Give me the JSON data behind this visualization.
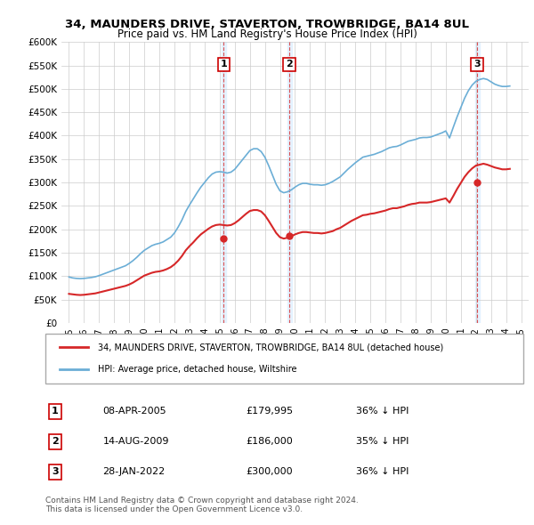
{
  "title_line1": "34, MAUNDERS DRIVE, STAVERTON, TROWBRIDGE, BA14 8UL",
  "title_line2": "Price paid vs. HM Land Registry's House Price Index (HPI)",
  "hpi_color": "#6baed6",
  "price_color": "#d62728",
  "transaction_color": "#d62728",
  "background_color": "#ffffff",
  "plot_bg_color": "#ffffff",
  "grid_color": "#cccccc",
  "shade_color": "#ddeeff",
  "transactions": [
    {
      "label": "1",
      "date": "08-APR-2005",
      "price": 179995,
      "hpi_pct": "36% ↓ HPI",
      "x_year": 2005.27
    },
    {
      "label": "2",
      "date": "14-AUG-2009",
      "price": 186000,
      "hpi_pct": "35% ↓ HPI",
      "x_year": 2009.62
    },
    {
      "label": "3",
      "date": "28-JAN-2022",
      "price": 300000,
      "hpi_pct": "36% ↓ HPI",
      "x_year": 2022.08
    }
  ],
  "hpi_data": {
    "years": [
      1995.0,
      1995.25,
      1995.5,
      1995.75,
      1996.0,
      1996.25,
      1996.5,
      1996.75,
      1997.0,
      1997.25,
      1997.5,
      1997.75,
      1998.0,
      1998.25,
      1998.5,
      1998.75,
      1999.0,
      1999.25,
      1999.5,
      1999.75,
      2000.0,
      2000.25,
      2000.5,
      2000.75,
      2001.0,
      2001.25,
      2001.5,
      2001.75,
      2002.0,
      2002.25,
      2002.5,
      2002.75,
      2003.0,
      2003.25,
      2003.5,
      2003.75,
      2004.0,
      2004.25,
      2004.5,
      2004.75,
      2005.0,
      2005.25,
      2005.5,
      2005.75,
      2006.0,
      2006.25,
      2006.5,
      2006.75,
      2007.0,
      2007.25,
      2007.5,
      2007.75,
      2008.0,
      2008.25,
      2008.5,
      2008.75,
      2009.0,
      2009.25,
      2009.5,
      2009.75,
      2010.0,
      2010.25,
      2010.5,
      2010.75,
      2011.0,
      2011.25,
      2011.5,
      2011.75,
      2012.0,
      2012.25,
      2012.5,
      2012.75,
      2013.0,
      2013.25,
      2013.5,
      2013.75,
      2014.0,
      2014.25,
      2014.5,
      2014.75,
      2015.0,
      2015.25,
      2015.5,
      2015.75,
      2016.0,
      2016.25,
      2016.5,
      2016.75,
      2017.0,
      2017.25,
      2017.5,
      2017.75,
      2018.0,
      2018.25,
      2018.5,
      2018.75,
      2019.0,
      2019.25,
      2019.5,
      2019.75,
      2020.0,
      2020.25,
      2020.5,
      2020.75,
      2021.0,
      2021.25,
      2021.5,
      2021.75,
      2022.0,
      2022.25,
      2022.5,
      2022.75,
      2023.0,
      2023.25,
      2023.5,
      2023.75,
      2024.0,
      2024.25
    ],
    "values": [
      98000,
      96000,
      95000,
      94500,
      95000,
      96000,
      97000,
      98500,
      101000,
      104000,
      107000,
      110000,
      113000,
      116000,
      119000,
      122000,
      127000,
      133000,
      140000,
      148000,
      155000,
      160000,
      165000,
      168000,
      170000,
      173000,
      178000,
      183000,
      192000,
      205000,
      220000,
      238000,
      252000,
      265000,
      278000,
      290000,
      300000,
      310000,
      318000,
      322000,
      323000,
      322000,
      320000,
      322000,
      328000,
      338000,
      348000,
      358000,
      368000,
      372000,
      372000,
      366000,
      354000,
      336000,
      316000,
      296000,
      282000,
      278000,
      280000,
      284000,
      290000,
      295000,
      298000,
      298000,
      296000,
      295000,
      295000,
      294000,
      295000,
      298000,
      302000,
      307000,
      312000,
      320000,
      328000,
      335000,
      342000,
      348000,
      354000,
      356000,
      358000,
      360000,
      363000,
      366000,
      370000,
      374000,
      376000,
      377000,
      380000,
      384000,
      388000,
      390000,
      392000,
      395000,
      396000,
      396000,
      397000,
      400000,
      403000,
      406000,
      410000,
      395000,
      418000,
      440000,
      460000,
      480000,
      496000,
      508000,
      516000,
      520000,
      522000,
      520000,
      515000,
      510000,
      507000,
      505000,
      505000,
      506000
    ]
  },
  "price_data": {
    "years": [
      1995.0,
      1995.25,
      1995.5,
      1995.75,
      1996.0,
      1996.25,
      1996.5,
      1996.75,
      1997.0,
      1997.25,
      1997.5,
      1997.75,
      1998.0,
      1998.25,
      1998.5,
      1998.75,
      1999.0,
      1999.25,
      1999.5,
      1999.75,
      2000.0,
      2000.25,
      2000.5,
      2000.75,
      2001.0,
      2001.25,
      2001.5,
      2001.75,
      2002.0,
      2002.25,
      2002.5,
      2002.75,
      2003.0,
      2003.25,
      2003.5,
      2003.75,
      2004.0,
      2004.25,
      2004.5,
      2004.75,
      2005.0,
      2005.25,
      2005.5,
      2005.75,
      2006.0,
      2006.25,
      2006.5,
      2006.75,
      2007.0,
      2007.25,
      2007.5,
      2007.75,
      2008.0,
      2008.25,
      2008.5,
      2008.75,
      2009.0,
      2009.25,
      2009.5,
      2009.75,
      2010.0,
      2010.25,
      2010.5,
      2010.75,
      2011.0,
      2011.25,
      2011.5,
      2011.75,
      2012.0,
      2012.25,
      2012.5,
      2012.75,
      2013.0,
      2013.25,
      2013.5,
      2013.75,
      2014.0,
      2014.25,
      2014.5,
      2014.75,
      2015.0,
      2015.25,
      2015.5,
      2015.75,
      2016.0,
      2016.25,
      2016.5,
      2016.75,
      2017.0,
      2017.25,
      2017.5,
      2017.75,
      2018.0,
      2018.25,
      2018.5,
      2018.75,
      2019.0,
      2019.25,
      2019.5,
      2019.75,
      2020.0,
      2020.25,
      2020.5,
      2020.75,
      2021.0,
      2021.25,
      2021.5,
      2021.75,
      2022.0,
      2022.25,
      2022.5,
      2022.75,
      2023.0,
      2023.25,
      2023.5,
      2023.75,
      2024.0,
      2024.25
    ],
    "values": [
      62000,
      61000,
      60000,
      59500,
      60000,
      61000,
      62000,
      63000,
      65000,
      67000,
      69000,
      71000,
      73000,
      75000,
      77000,
      79000,
      82000,
      86000,
      91000,
      96000,
      101000,
      104000,
      107000,
      109000,
      110000,
      112000,
      115000,
      119000,
      125000,
      133000,
      143000,
      155000,
      164000,
      172000,
      181000,
      189000,
      195000,
      201000,
      206000,
      209000,
      210000,
      209000,
      208000,
      209000,
      213000,
      219000,
      226000,
      233000,
      239000,
      241000,
      241000,
      238000,
      230000,
      218000,
      205000,
      192000,
      183000,
      180000,
      182000,
      185000,
      189000,
      192000,
      194000,
      194000,
      193000,
      192000,
      192000,
      191000,
      192000,
      194000,
      196000,
      200000,
      203000,
      208000,
      213000,
      218000,
      222000,
      226000,
      230000,
      231000,
      233000,
      234000,
      236000,
      238000,
      240000,
      243000,
      245000,
      245000,
      247000,
      249000,
      252000,
      254000,
      255000,
      257000,
      257000,
      257000,
      258000,
      260000,
      262000,
      264000,
      266000,
      257000,
      271000,
      286000,
      299000,
      312000,
      322000,
      330000,
      336000,
      338000,
      340000,
      338000,
      335000,
      332000,
      330000,
      328000,
      328000,
      329000
    ]
  },
  "ylim": [
    0,
    600000
  ],
  "xlim": [
    1994.5,
    2025.5
  ],
  "yticks": [
    0,
    50000,
    100000,
    150000,
    200000,
    250000,
    300000,
    350000,
    400000,
    450000,
    500000,
    550000,
    600000
  ],
  "ytick_labels": [
    "£0",
    "£50K",
    "£100K",
    "£150K",
    "£200K",
    "£250K",
    "£300K",
    "£350K",
    "£400K",
    "£450K",
    "£500K",
    "£550K",
    "£600K"
  ],
  "xticks": [
    1995,
    1996,
    1997,
    1998,
    1999,
    2000,
    2001,
    2002,
    2003,
    2004,
    2005,
    2006,
    2007,
    2008,
    2009,
    2010,
    2011,
    2012,
    2013,
    2014,
    2015,
    2016,
    2017,
    2018,
    2019,
    2020,
    2021,
    2022,
    2023,
    2024,
    2025
  ],
  "legend_label_red": "34, MAUNDERS DRIVE, STAVERTON, TROWBRIDGE, BA14 8UL (detached house)",
  "legend_label_blue": "HPI: Average price, detached house, Wiltshire",
  "footer_line1": "Contains HM Land Registry data © Crown copyright and database right 2024.",
  "footer_line2": "This data is licensed under the Open Government Licence v3.0."
}
